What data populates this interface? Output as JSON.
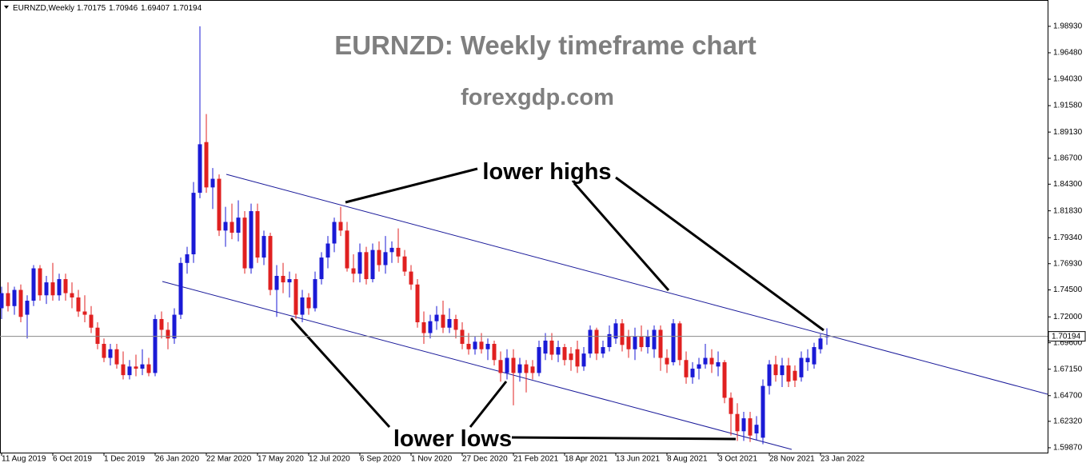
{
  "chart_data": {
    "type": "candlestick",
    "header": "EURNZD,Weekly",
    "title": "EURNZD: Weekly timeframe chart",
    "subtitle": "forexgdp.com",
    "annotations": [
      "lower highs",
      "lower lows"
    ],
    "up_color": "#1a1ad6",
    "down_color": "#e02020",
    "ylim": [
      1.5942,
      2.0137
    ],
    "yticks": [
      {
        "value": 1.9893,
        "label": "1.98930"
      },
      {
        "value": 1.9648,
        "label": "1.96480"
      },
      {
        "value": 1.9403,
        "label": "1.94030"
      },
      {
        "value": 1.9158,
        "label": "1.91580"
      },
      {
        "value": 1.8913,
        "label": "1.89130"
      },
      {
        "value": 1.867,
        "label": "1.86700"
      },
      {
        "value": 1.843,
        "label": "1.84300"
      },
      {
        "value": 1.8183,
        "label": "1.81830"
      },
      {
        "value": 1.7934,
        "label": "1.79340"
      },
      {
        "value": 1.7693,
        "label": "1.76930"
      },
      {
        "value": 1.745,
        "label": "1.74500"
      },
      {
        "value": 1.72,
        "label": "1.72000"
      },
      {
        "value": 1.696,
        "label": "1.69600"
      },
      {
        "value": 1.6715,
        "label": "1.67150"
      },
      {
        "value": 1.647,
        "label": "1.64700"
      },
      {
        "value": 1.6232,
        "label": "1.62320"
      },
      {
        "value": 1.5987,
        "label": "1.59870"
      }
    ],
    "categories": [
      "11 Aug 2019",
      null,
      null,
      null,
      null,
      null,
      null,
      null,
      "6 Oct 2019",
      null,
      null,
      null,
      null,
      null,
      null,
      null,
      "1 Dec 2019",
      null,
      null,
      null,
      null,
      null,
      null,
      null,
      "26 Jan 2020",
      null,
      null,
      null,
      null,
      null,
      null,
      null,
      "22 Mar 2020",
      null,
      null,
      null,
      null,
      null,
      null,
      null,
      "17 May 2020",
      null,
      null,
      null,
      null,
      null,
      null,
      null,
      "12 Jul 2020",
      null,
      null,
      null,
      null,
      null,
      null,
      null,
      "6 Sep 2020",
      null,
      null,
      null,
      null,
      null,
      null,
      null,
      "1 Nov 2020",
      null,
      null,
      null,
      null,
      null,
      null,
      null,
      "27 Dec 2020",
      null,
      null,
      null,
      null,
      null,
      null,
      null,
      "21 Feb 2021",
      null,
      null,
      null,
      null,
      null,
      null,
      null,
      "18 Apr 2021",
      null,
      null,
      null,
      null,
      null,
      null,
      null,
      "13 Jun 2021",
      null,
      null,
      null,
      null,
      null,
      null,
      null,
      "8 Aug 2021",
      null,
      null,
      null,
      null,
      null,
      null,
      null,
      "3 Oct 2021",
      null,
      null,
      null,
      null,
      null,
      null,
      null,
      "28 Nov 2021",
      null,
      null,
      null,
      null,
      null,
      null,
      null,
      "23 Jan 2022",
      null
    ],
    "ohlc": [
      [
        1.728,
        1.748,
        1.718,
        1.742
      ],
      [
        1.742,
        1.752,
        1.725,
        1.73
      ],
      [
        1.73,
        1.748,
        1.722,
        1.745
      ],
      [
        1.745,
        1.75,
        1.715,
        1.72
      ],
      [
        1.722,
        1.74,
        1.7,
        1.735
      ],
      [
        1.735,
        1.768,
        1.73,
        1.765
      ],
      [
        1.765,
        1.768,
        1.735,
        1.74
      ],
      [
        1.74,
        1.758,
        1.732,
        1.752
      ],
      [
        1.752,
        1.77,
        1.735,
        1.74
      ],
      [
        1.74,
        1.76,
        1.735,
        1.755
      ],
      [
        1.755,
        1.76,
        1.735,
        1.742
      ],
      [
        1.742,
        1.752,
        1.728,
        1.738
      ],
      [
        1.738,
        1.745,
        1.72,
        1.725
      ],
      [
        1.725,
        1.74,
        1.715,
        1.722
      ],
      [
        1.722,
        1.73,
        1.705,
        1.71
      ],
      [
        1.71,
        1.715,
        1.69,
        1.695
      ],
      [
        1.695,
        1.7,
        1.678,
        1.682
      ],
      [
        1.682,
        1.695,
        1.675,
        1.69
      ],
      [
        1.69,
        1.695,
        1.672,
        1.676
      ],
      [
        1.676,
        1.688,
        1.662,
        1.666
      ],
      [
        1.666,
        1.68,
        1.662,
        1.674
      ],
      [
        1.674,
        1.685,
        1.665,
        1.672
      ],
      [
        1.672,
        1.69,
        1.666,
        1.676
      ],
      [
        1.676,
        1.682,
        1.665,
        1.668
      ],
      [
        1.668,
        1.722,
        1.665,
        1.718
      ],
      [
        1.718,
        1.725,
        1.7,
        1.708
      ],
      [
        1.708,
        1.715,
        1.69,
        1.7
      ],
      [
        1.7,
        1.728,
        1.695,
        1.722
      ],
      [
        1.722,
        1.775,
        1.718,
        1.77
      ],
      [
        1.77,
        1.785,
        1.76,
        1.778
      ],
      [
        1.778,
        1.845,
        1.77,
        1.835
      ],
      [
        1.835,
        1.9893,
        1.83,
        1.88
      ],
      [
        1.882,
        1.908,
        1.835,
        1.84
      ],
      [
        1.84,
        1.858,
        1.82,
        1.848
      ],
      [
        1.848,
        1.852,
        1.795,
        1.8
      ],
      [
        1.8,
        1.822,
        1.785,
        1.808
      ],
      [
        1.808,
        1.825,
        1.792,
        1.798
      ],
      [
        1.798,
        1.828,
        1.79,
        1.812
      ],
      [
        1.812,
        1.818,
        1.76,
        1.765
      ],
      [
        1.765,
        1.825,
        1.76,
        1.818
      ],
      [
        1.818,
        1.825,
        1.77,
        1.775
      ],
      [
        1.775,
        1.8,
        1.768,
        1.795
      ],
      [
        1.795,
        1.798,
        1.74,
        1.745
      ],
      [
        1.745,
        1.768,
        1.72,
        1.758
      ],
      [
        1.758,
        1.77,
        1.742,
        1.752
      ],
      [
        1.752,
        1.762,
        1.738,
        1.755
      ],
      [
        1.755,
        1.76,
        1.718,
        1.722
      ],
      [
        1.722,
        1.745,
        1.715,
        1.738
      ],
      [
        1.738,
        1.742,
        1.722,
        1.728
      ],
      [
        1.728,
        1.762,
        1.725,
        1.755
      ],
      [
        1.755,
        1.78,
        1.75,
        1.775
      ],
      [
        1.775,
        1.795,
        1.765,
        1.788
      ],
      [
        1.788,
        1.812,
        1.78,
        1.808
      ],
      [
        1.808,
        1.822,
        1.795,
        1.8
      ],
      [
        1.8,
        1.808,
        1.762,
        1.765
      ],
      [
        1.765,
        1.778,
        1.752,
        1.76
      ],
      [
        1.76,
        1.788,
        1.752,
        1.78
      ],
      [
        1.78,
        1.785,
        1.75,
        1.755
      ],
      [
        1.755,
        1.788,
        1.752,
        1.782
      ],
      [
        1.782,
        1.79,
        1.762,
        1.768
      ],
      [
        1.768,
        1.795,
        1.76,
        1.78
      ],
      [
        1.78,
        1.79,
        1.77,
        1.784
      ],
      [
        1.784,
        1.802,
        1.77,
        1.776
      ],
      [
        1.776,
        1.782,
        1.758,
        1.762
      ],
      [
        1.762,
        1.768,
        1.745,
        1.75
      ],
      [
        1.75,
        1.755,
        1.71,
        1.715
      ],
      [
        1.715,
        1.725,
        1.695,
        1.705
      ],
      [
        1.705,
        1.722,
        1.7,
        1.716
      ],
      [
        1.716,
        1.73,
        1.708,
        1.722
      ],
      [
        1.722,
        1.735,
        1.705,
        1.71
      ],
      [
        1.71,
        1.728,
        1.705,
        1.718
      ],
      [
        1.718,
        1.722,
        1.7,
        1.708
      ],
      [
        1.708,
        1.715,
        1.69,
        1.695
      ],
      [
        1.695,
        1.705,
        1.685,
        1.69
      ],
      [
        1.69,
        1.702,
        1.685,
        1.697
      ],
      [
        1.697,
        1.705,
        1.686,
        1.69
      ],
      [
        1.69,
        1.7,
        1.68,
        1.695
      ],
      [
        1.695,
        1.698,
        1.675,
        1.68
      ],
      [
        1.68,
        1.688,
        1.66,
        1.668
      ],
      [
        1.668,
        1.69,
        1.662,
        1.682
      ],
      [
        1.682,
        1.69,
        1.638,
        1.668
      ],
      [
        1.668,
        1.682,
        1.66,
        1.676
      ],
      [
        1.676,
        1.68,
        1.65,
        1.668
      ],
      [
        1.674,
        1.68,
        1.662,
        1.668
      ],
      [
        1.668,
        1.698,
        1.665,
        1.692
      ],
      [
        1.686,
        1.705,
        1.68,
        1.698
      ],
      [
        1.698,
        1.705,
        1.68,
        1.685
      ],
      [
        1.685,
        1.698,
        1.678,
        1.692
      ],
      [
        1.692,
        1.695,
        1.675,
        1.68
      ],
      [
        1.686,
        1.692,
        1.67,
        1.68
      ],
      [
        1.69,
        1.698,
        1.668,
        1.674
      ],
      [
        1.674,
        1.692,
        1.67,
        1.686
      ],
      [
        1.686,
        1.712,
        1.682,
        1.708
      ],
      [
        1.708,
        1.71,
        1.68,
        1.686
      ],
      [
        1.686,
        1.698,
        1.682,
        1.692
      ],
      [
        1.692,
        1.712,
        1.688,
        1.704
      ],
      [
        1.7,
        1.718,
        1.695,
        1.714
      ],
      [
        1.714,
        1.718,
        1.688,
        1.694
      ],
      [
        1.702,
        1.708,
        1.682,
        1.69
      ],
      [
        1.69,
        1.71,
        1.68,
        1.702
      ],
      [
        1.702,
        1.712,
        1.688,
        1.692
      ],
      [
        1.692,
        1.708,
        1.686,
        1.702
      ],
      [
        1.69,
        1.712,
        1.682,
        1.708
      ],
      [
        1.708,
        1.712,
        1.67,
        1.682
      ],
      [
        1.682,
        1.69,
        1.668,
        1.676
      ],
      [
        1.678,
        1.718,
        1.675,
        1.714
      ],
      [
        1.714,
        1.716,
        1.675,
        1.68
      ],
      [
        1.68,
        1.688,
        1.658,
        1.664
      ],
      [
        1.664,
        1.678,
        1.658,
        1.672
      ],
      [
        1.672,
        1.682,
        1.662,
        1.676
      ],
      [
        1.676,
        1.695,
        1.672,
        1.682
      ],
      [
        1.682,
        1.69,
        1.668,
        1.676
      ],
      [
        1.674,
        1.688,
        1.665,
        1.678
      ],
      [
        1.678,
        1.68,
        1.64,
        1.645
      ],
      [
        1.645,
        1.65,
        1.61,
        1.63
      ],
      [
        1.63,
        1.64,
        1.605,
        1.614
      ],
      [
        1.614,
        1.632,
        1.605,
        1.626
      ],
      [
        1.626,
        1.632,
        1.604,
        1.61
      ],
      [
        1.612,
        1.628,
        1.606,
        1.62
      ],
      [
        1.608,
        1.662,
        1.602,
        1.656
      ],
      [
        1.656,
        1.68,
        1.648,
        1.676
      ],
      [
        1.676,
        1.684,
        1.66,
        1.666
      ],
      [
        1.666,
        1.682,
        1.655,
        1.675
      ],
      [
        1.675,
        1.682,
        1.655,
        1.66
      ],
      [
        1.67,
        1.675,
        1.655,
        1.661
      ],
      [
        1.664,
        1.688,
        1.66,
        1.682
      ],
      [
        1.678,
        1.69,
        1.67,
        1.682
      ],
      [
        1.676,
        1.696,
        1.672,
        1.692
      ],
      [
        1.69,
        1.704,
        1.686,
        1.7
      ],
      [
        1.70175,
        1.70946,
        1.69407,
        1.70194
      ]
    ]
  }
}
